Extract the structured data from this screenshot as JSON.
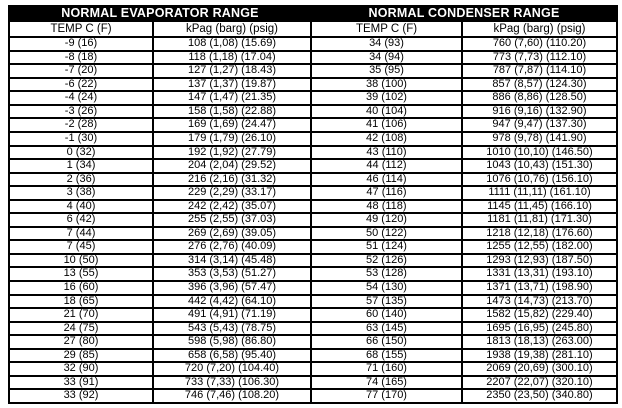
{
  "colors": {
    "page_bg": "#ffffff",
    "header_bg": "#000000",
    "header_text": "#ffffff",
    "border": "#000000",
    "row_bg": "#ffffff",
    "text": "#000000"
  },
  "tables": [
    {
      "title": "NORMAL EVAPORATOR RANGE",
      "columns": [
        "TEMP C (F)",
        "kPag (barg) (psig)"
      ],
      "rows": [
        [
          "-9 (16)",
          "108 (1,08) (15.69)"
        ],
        [
          "-8 (18)",
          "118 (1,18) (17.04)"
        ],
        [
          "-7 (20)",
          "127 (1,27) (18.43)"
        ],
        [
          "-6 (22)",
          "137 (1,37) (19.87)"
        ],
        [
          "-4 (24)",
          "147 (1,47) (21.35)"
        ],
        [
          "-3 (26)",
          "158 (1,58) (22.88)"
        ],
        [
          "-2 (28)",
          "169 (1,69) (24.47)"
        ],
        [
          "-1 (30)",
          "179 (1,79) (26.10)"
        ],
        [
          "0 (32)",
          "192 (1,92) (27.79)"
        ],
        [
          "1 (34)",
          "204 (2,04) (29.52)"
        ],
        [
          "2 (36)",
          "216 (2,16) (31.32)"
        ],
        [
          "3 (38)",
          "229 (2,29) (33.17)"
        ],
        [
          "4 (40)",
          "242 (2,42) (35.07)"
        ],
        [
          "6 (42)",
          "255 (2,55) (37.03)"
        ],
        [
          "7 (44)",
          "269 (2,69) (39.05)"
        ],
        [
          "7 (45)",
          "276 (2,76) (40.09)"
        ],
        [
          "10 (50)",
          "314 (3,14) (45.48)"
        ],
        [
          "13 (55)",
          "353 (3,53) (51.27)"
        ],
        [
          "16 (60)",
          "396 (3,96) (57.47)"
        ],
        [
          "18 (65)",
          "442 (4,42) (64.10)"
        ],
        [
          "21 (70)",
          "491 (4,91) (71.19)"
        ],
        [
          "24 (75)",
          "543 (5,43) (78.75)"
        ],
        [
          "27 (80)",
          "598 (5,98) (86.80)"
        ],
        [
          "29 (85)",
          "658 (6,58) (95.40)"
        ],
        [
          "32 (90)",
          "720 (7,20) (104.40)"
        ],
        [
          "33 (91)",
          "733 (7,33) (106.30)"
        ],
        [
          "33 (92)",
          "746 (7,46) (108.20)"
        ]
      ]
    },
    {
      "title": "NORMAL CONDENSER RANGE",
      "columns": [
        "TEMP C (F)",
        "kPag (barg) (psig)"
      ],
      "rows": [
        [
          "34 (93)",
          "760 (7,60) (110.20)"
        ],
        [
          "34 (94)",
          "773 (7,73) (112.10)"
        ],
        [
          "35 (95)",
          "787 (7,87) (114.10)"
        ],
        [
          "38 (100)",
          "857 (8,57) (124.30)"
        ],
        [
          "39 (102)",
          "886 (8,86) (128.50)"
        ],
        [
          "40 (104)",
          "916 (9,16) (132.90)"
        ],
        [
          "41 (106)",
          "947 (9,47) (137.30)"
        ],
        [
          "42 (108)",
          "978 (9,78) (141.90)"
        ],
        [
          "43 (110)",
          "1010 (10,10) (146.50)"
        ],
        [
          "44 (112)",
          "1043 (10,43) (151.30)"
        ],
        [
          "46 (114)",
          "1076 (10,76) (156.10)"
        ],
        [
          "47 (116)",
          "1111 (11,11) (161.10)"
        ],
        [
          "48 (118)",
          "1145 (11,45) (166.10)"
        ],
        [
          "49 (120)",
          "1181 (11,81) (171.30)"
        ],
        [
          "50 (122)",
          "1218 (12,18) (176.60)"
        ],
        [
          "51 (124)",
          "1255 (12,55) (182.00)"
        ],
        [
          "52 (126)",
          "1293 (12,93) (187.50)"
        ],
        [
          "53 (128)",
          "1331 (13,31) (193.10)"
        ],
        [
          "54 (130)",
          "1371 (13,71) (198.90)"
        ],
        [
          "57 (135)",
          "1473 (14,73) (213.70)"
        ],
        [
          "60 (140)",
          "1582 (15,82) (229.40)"
        ],
        [
          "63 (145)",
          "1695 (16,95) (245.80)"
        ],
        [
          "66 (150)",
          "1813 (18,13) (263.00)"
        ],
        [
          "68 (155)",
          "1938 (19,38) (281.10)"
        ],
        [
          "71 (160)",
          "2069 (20,69) (300.10)"
        ],
        [
          "74 (165)",
          "2207 (22,07) (320.10)"
        ],
        [
          "77 (170)",
          "2350 (23,50) (340.80)"
        ]
      ]
    }
  ]
}
